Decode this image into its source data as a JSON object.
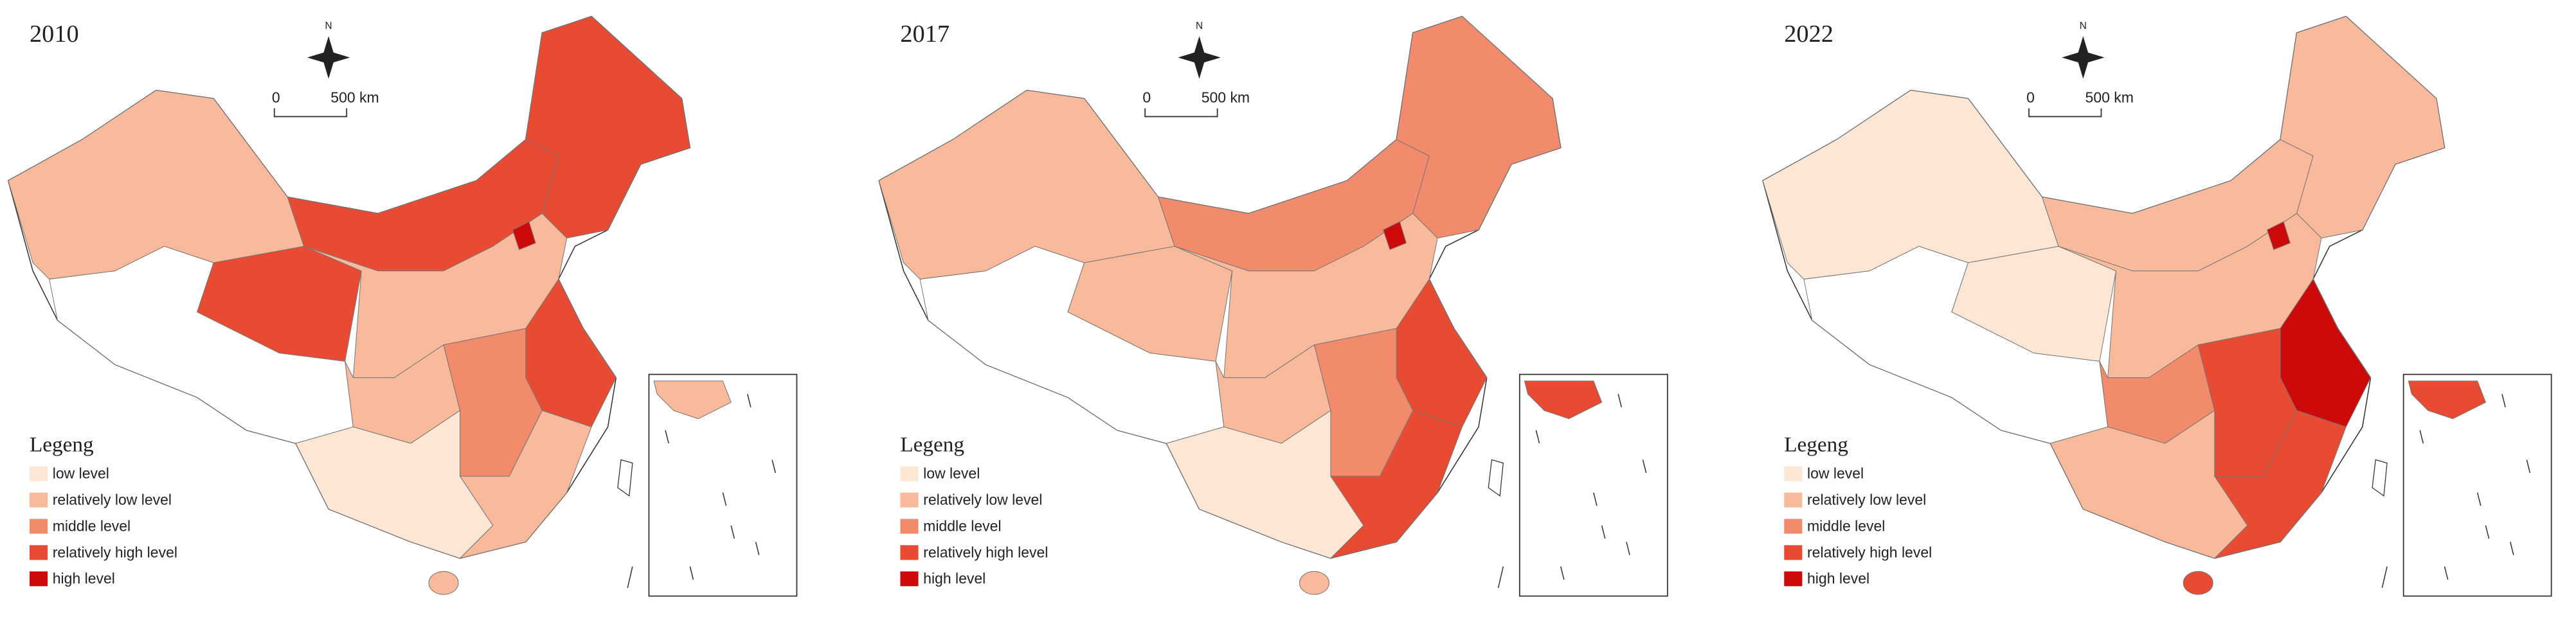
{
  "maps": [
    {
      "year": "2010",
      "north": "N",
      "scale": {
        "start": "0",
        "end": "500 km"
      },
      "legend": {
        "title": "Legeng",
        "items": [
          {
            "label": "low level",
            "color": "#fde6d4"
          },
          {
            "label": "relatively low level",
            "color": "#f9ba9b"
          },
          {
            "label": "middle level",
            "color": "#f28a6c"
          },
          {
            "label": "relatively high level",
            "color": "#e84a32"
          },
          {
            "label": "high level",
            "color": "#cc0a0a"
          }
        ]
      }
    },
    {
      "year": "2017",
      "north": "N",
      "scale": {
        "start": "0",
        "end": "500 km"
      },
      "legend": {
        "title": "Legeng",
        "items": [
          {
            "label": "low level",
            "color": "#fde6d4"
          },
          {
            "label": "relatively low level",
            "color": "#f9ba9b"
          },
          {
            "label": "middle level",
            "color": "#f28a6c"
          },
          {
            "label": "relatively high level",
            "color": "#e84a32"
          },
          {
            "label": "high level",
            "color": "#cc0a0a"
          }
        ]
      }
    },
    {
      "year": "2022",
      "north": "N",
      "scale": {
        "start": "0",
        "end": "500 km"
      },
      "legend": {
        "title": "Legeng",
        "items": [
          {
            "label": "low level",
            "color": "#fde6d4"
          },
          {
            "label": "relatively low level",
            "color": "#f9ba9b"
          },
          {
            "label": "middle level",
            "color": "#f28a6c"
          },
          {
            "label": "relatively high level",
            "color": "#e84a32"
          },
          {
            "label": "high level",
            "color": "#cc0a0a"
          }
        ]
      }
    }
  ]
}
